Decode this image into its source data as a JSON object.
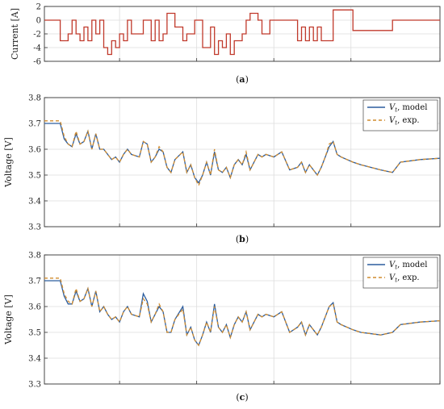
{
  "chart_data": [
    {
      "type": "line",
      "panel_label": "a",
      "ylabel": "Current [A]",
      "ylim": [
        -6,
        2
      ],
      "yticks": [
        2,
        0,
        -2,
        -4,
        -6
      ],
      "xlim": [
        0,
        100
      ],
      "grid": true,
      "series": [
        {
          "color": "#c0392b",
          "x": [
            0,
            4,
            4,
            6,
            6,
            7,
            7,
            8,
            8,
            9,
            9,
            10,
            10,
            11,
            11,
            12,
            12,
            13,
            13,
            14,
            14,
            15,
            15,
            16,
            16,
            17,
            17,
            18,
            18,
            19,
            19,
            20,
            20,
            21,
            21,
            22,
            22,
            25,
            25,
            27,
            27,
            28,
            28,
            29,
            29,
            30,
            30,
            31,
            31,
            33,
            33,
            35,
            35,
            36,
            36,
            38,
            38,
            40,
            40,
            42,
            42,
            43,
            43,
            44,
            44,
            45,
            45,
            46,
            46,
            47,
            47,
            48,
            48,
            50,
            50,
            51,
            51,
            52,
            52,
            54,
            54,
            55,
            55,
            57,
            57,
            64,
            64,
            65,
            65,
            66,
            66,
            67,
            67,
            68,
            68,
            69,
            69,
            70,
            70,
            73,
            73,
            78,
            78,
            88,
            88,
            100
          ],
          "y": [
            0,
            0,
            -3,
            -3,
            -2,
            -2,
            0,
            0,
            -2,
            -2,
            -3,
            -3,
            -1,
            -1,
            -3,
            -3,
            0,
            0,
            -2,
            -2,
            0,
            0,
            -4,
            -4,
            -5,
            -5,
            -3,
            -3,
            -4,
            -4,
            -2,
            -2,
            -3,
            -3,
            0,
            0,
            -2,
            -2,
            0,
            0,
            -3,
            -3,
            0,
            0,
            -3,
            -3,
            -2,
            -2,
            1,
            1,
            -1,
            -1,
            -3,
            -3,
            -2,
            -2,
            0,
            0,
            -4,
            -4,
            -1,
            -1,
            -5,
            -5,
            -3,
            -3,
            -4,
            -4,
            -2,
            -2,
            -5,
            -5,
            -3,
            -3,
            -2,
            -2,
            0,
            0,
            1,
            1,
            0,
            0,
            -2,
            -2,
            0,
            0,
            -3,
            -3,
            -1,
            -1,
            -3,
            -3,
            -1,
            -1,
            -3,
            -3,
            -1,
            -1,
            -3,
            -3,
            1.5,
            1.5,
            -1.5,
            -1.5,
            0,
            0
          ]
        }
      ]
    },
    {
      "type": "line",
      "panel_label": "b",
      "ylabel": "Voltage [V]",
      "ylim": [
        3.3,
        3.8
      ],
      "yticks": [
        3.8,
        3.7,
        3.6,
        3.5,
        3.4,
        3.3
      ],
      "xlim": [
        0,
        100
      ],
      "grid": true,
      "legend_position": "top-right",
      "series": [
        {
          "name_main": "V",
          "name_sub": "t",
          "name_rest": ", model",
          "color": "#2c5d9e",
          "dash": "solid",
          "x": [
            0,
            4,
            5,
            6,
            7,
            8,
            9,
            10,
            11,
            12,
            13,
            14,
            15,
            16,
            17,
            18,
            19,
            20,
            21,
            22,
            24,
            25,
            26,
            27,
            28,
            29,
            30,
            31,
            32,
            33,
            35,
            36,
            37,
            38,
            39,
            40,
            41,
            42,
            43,
            44,
            45,
            46,
            47,
            48,
            49,
            50,
            51,
            52,
            54,
            55,
            56,
            58,
            60,
            62,
            64,
            65,
            66,
            67,
            68,
            69,
            70,
            71,
            72,
            73,
            74,
            75,
            78,
            80,
            85,
            88,
            90,
            95,
            100
          ],
          "y": [
            3.7,
            3.7,
            3.64,
            3.62,
            3.61,
            3.66,
            3.62,
            3.63,
            3.67,
            3.6,
            3.66,
            3.6,
            3.6,
            3.58,
            3.56,
            3.57,
            3.55,
            3.58,
            3.6,
            3.58,
            3.57,
            3.63,
            3.62,
            3.55,
            3.57,
            3.6,
            3.59,
            3.53,
            3.51,
            3.56,
            3.59,
            3.51,
            3.54,
            3.49,
            3.47,
            3.5,
            3.55,
            3.5,
            3.59,
            3.52,
            3.51,
            3.53,
            3.49,
            3.54,
            3.56,
            3.54,
            3.58,
            3.52,
            3.58,
            3.57,
            3.58,
            3.57,
            3.59,
            3.52,
            3.53,
            3.55,
            3.51,
            3.54,
            3.52,
            3.5,
            3.53,
            3.57,
            3.61,
            3.63,
            3.58,
            3.57,
            3.55,
            3.54,
            3.52,
            3.51,
            3.55,
            3.56,
            3.565
          ]
        },
        {
          "name_main": "V",
          "name_sub": "t",
          "name_rest": ", exp.",
          "color": "#d18c2e",
          "dash": "dashed",
          "x": [
            0,
            4,
            5,
            6,
            7,
            8,
            9,
            10,
            11,
            12,
            13,
            14,
            15,
            16,
            17,
            18,
            19,
            20,
            21,
            22,
            24,
            25,
            26,
            27,
            28,
            29,
            30,
            31,
            32,
            33,
            35,
            36,
            37,
            38,
            39,
            40,
            41,
            42,
            43,
            44,
            45,
            46,
            47,
            48,
            49,
            50,
            51,
            52,
            54,
            55,
            56,
            58,
            60,
            62,
            64,
            65,
            66,
            67,
            68,
            69,
            70,
            71,
            72,
            73,
            74,
            75,
            78,
            80,
            85,
            88,
            90,
            95,
            100
          ],
          "y": [
            3.71,
            3.71,
            3.65,
            3.62,
            3.61,
            3.67,
            3.62,
            3.63,
            3.67,
            3.6,
            3.66,
            3.6,
            3.6,
            3.58,
            3.56,
            3.57,
            3.55,
            3.58,
            3.6,
            3.58,
            3.57,
            3.63,
            3.62,
            3.55,
            3.57,
            3.61,
            3.59,
            3.53,
            3.51,
            3.56,
            3.59,
            3.51,
            3.54,
            3.49,
            3.46,
            3.5,
            3.55,
            3.5,
            3.6,
            3.52,
            3.51,
            3.53,
            3.49,
            3.54,
            3.56,
            3.54,
            3.59,
            3.52,
            3.58,
            3.57,
            3.58,
            3.57,
            3.59,
            3.52,
            3.53,
            3.55,
            3.51,
            3.54,
            3.52,
            3.5,
            3.53,
            3.57,
            3.62,
            3.63,
            3.58,
            3.57,
            3.55,
            3.54,
            3.52,
            3.51,
            3.55,
            3.56,
            3.565
          ]
        }
      ]
    },
    {
      "type": "line",
      "panel_label": "c",
      "ylabel": "Voltage [V]",
      "ylim": [
        3.3,
        3.8
      ],
      "yticks": [
        3.8,
        3.7,
        3.6,
        3.5,
        3.4,
        3.3
      ],
      "xlim": [
        0,
        100
      ],
      "grid": true,
      "legend_position": "top-right",
      "series": [
        {
          "name_main": "V",
          "name_sub": "t",
          "name_rest": ", model",
          "color": "#2c5d9e",
          "dash": "solid",
          "x": [
            0,
            4,
            5,
            6,
            7,
            8,
            9,
            10,
            11,
            12,
            13,
            14,
            15,
            16,
            17,
            18,
            19,
            20,
            21,
            22,
            24,
            25,
            26,
            27,
            28,
            29,
            30,
            31,
            32,
            33,
            35,
            36,
            37,
            38,
            39,
            40,
            41,
            42,
            43,
            44,
            45,
            46,
            47,
            48,
            49,
            50,
            51,
            52,
            54,
            55,
            56,
            58,
            60,
            62,
            64,
            65,
            66,
            67,
            68,
            69,
            70,
            71,
            72,
            73,
            74,
            75,
            78,
            80,
            85,
            88,
            90,
            95,
            100
          ],
          "y": [
            3.7,
            3.7,
            3.64,
            3.61,
            3.61,
            3.66,
            3.62,
            3.63,
            3.67,
            3.6,
            3.66,
            3.58,
            3.6,
            3.57,
            3.55,
            3.56,
            3.54,
            3.58,
            3.6,
            3.57,
            3.56,
            3.65,
            3.62,
            3.54,
            3.57,
            3.6,
            3.58,
            3.5,
            3.5,
            3.55,
            3.6,
            3.49,
            3.52,
            3.47,
            3.45,
            3.49,
            3.54,
            3.5,
            3.61,
            3.52,
            3.5,
            3.53,
            3.48,
            3.53,
            3.56,
            3.54,
            3.58,
            3.51,
            3.57,
            3.56,
            3.57,
            3.56,
            3.58,
            3.5,
            3.52,
            3.54,
            3.49,
            3.53,
            3.51,
            3.49,
            3.52,
            3.56,
            3.6,
            3.615,
            3.54,
            3.53,
            3.51,
            3.5,
            3.49,
            3.5,
            3.53,
            3.54,
            3.545
          ]
        },
        {
          "name_main": "V",
          "name_sub": "t",
          "name_rest": ", exp.",
          "color": "#d18c2e",
          "dash": "dashed",
          "x": [
            0,
            4,
            5,
            6,
            7,
            8,
            9,
            10,
            11,
            12,
            13,
            14,
            15,
            16,
            17,
            18,
            19,
            20,
            21,
            22,
            24,
            25,
            26,
            27,
            28,
            29,
            30,
            31,
            32,
            33,
            35,
            36,
            37,
            38,
            39,
            40,
            41,
            42,
            43,
            44,
            45,
            46,
            47,
            48,
            49,
            50,
            51,
            52,
            54,
            55,
            56,
            58,
            60,
            62,
            64,
            65,
            66,
            67,
            68,
            69,
            70,
            71,
            72,
            73,
            74,
            75,
            78,
            80,
            85,
            88,
            90,
            95,
            100
          ],
          "y": [
            3.71,
            3.71,
            3.65,
            3.62,
            3.61,
            3.67,
            3.62,
            3.63,
            3.67,
            3.6,
            3.66,
            3.58,
            3.6,
            3.57,
            3.55,
            3.56,
            3.54,
            3.58,
            3.6,
            3.57,
            3.56,
            3.63,
            3.61,
            3.54,
            3.57,
            3.61,
            3.58,
            3.5,
            3.5,
            3.55,
            3.59,
            3.49,
            3.52,
            3.47,
            3.45,
            3.49,
            3.54,
            3.5,
            3.6,
            3.52,
            3.5,
            3.53,
            3.48,
            3.53,
            3.56,
            3.54,
            3.58,
            3.51,
            3.57,
            3.56,
            3.57,
            3.56,
            3.58,
            3.5,
            3.52,
            3.54,
            3.49,
            3.53,
            3.51,
            3.49,
            3.52,
            3.56,
            3.6,
            3.61,
            3.54,
            3.53,
            3.51,
            3.5,
            3.49,
            3.5,
            3.53,
            3.54,
            3.545
          ]
        }
      ]
    }
  ]
}
